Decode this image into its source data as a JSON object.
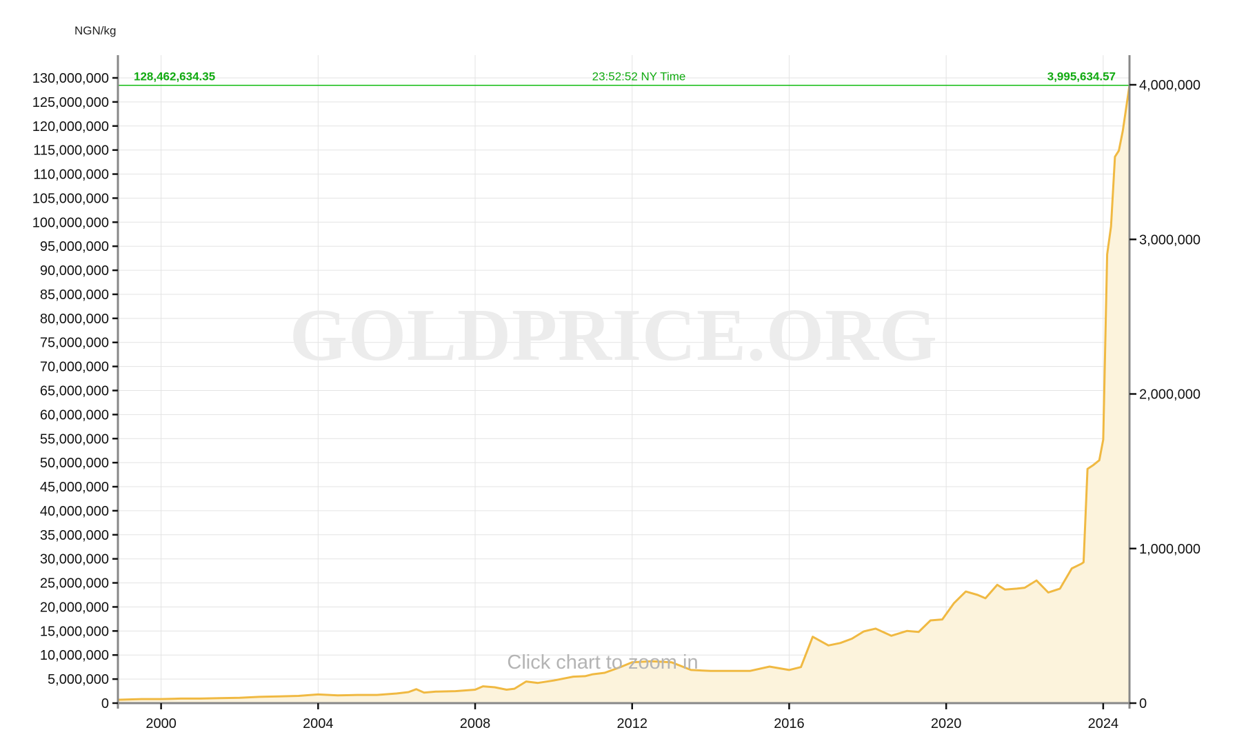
{
  "chart_data": {
    "type": "area",
    "unit_label": "NGN/kg",
    "watermark": "GOLDPRICE.ORG",
    "zoom_hint": "Click chart to zoom in",
    "reference_line": {
      "left_value_label": "128,462,634.35",
      "time_label": "23:52:52 NY Time",
      "right_value_label": "3,995,634.57",
      "value": 128462634.35,
      "color": "#11bb11"
    },
    "x_axis": {
      "min": 1998.9,
      "max": 2024.67,
      "ticks": [
        2000,
        2004,
        2008,
        2012,
        2016,
        2020,
        2024
      ],
      "tick_labels": [
        "2000",
        "2004",
        "2008",
        "2012",
        "2016",
        "2020",
        "2024"
      ]
    },
    "y_axis_left": {
      "min": 0,
      "max": 130000000,
      "ticks": [
        0,
        5000000,
        10000000,
        15000000,
        20000000,
        25000000,
        30000000,
        35000000,
        40000000,
        45000000,
        50000000,
        55000000,
        60000000,
        65000000,
        70000000,
        75000000,
        80000000,
        85000000,
        90000000,
        95000000,
        100000000,
        105000000,
        110000000,
        115000000,
        120000000,
        125000000,
        130000000
      ],
      "tick_labels": [
        "0",
        "5,000,000",
        "10,000,000",
        "15,000,000",
        "20,000,000",
        "25,000,000",
        "30,000,000",
        "35,000,000",
        "40,000,000",
        "45,000,000",
        "50,000,000",
        "55,000,000",
        "60,000,000",
        "65,000,000",
        "70,000,000",
        "75,000,000",
        "80,000,000",
        "85,000,000",
        "90,000,000",
        "95,000,000",
        "100,000,000",
        "105,000,000",
        "110,000,000",
        "115,000,000",
        "120,000,000",
        "125,000,000",
        "130,000,000"
      ]
    },
    "y_axis_right": {
      "min": 0,
      "max": 4000000,
      "ticks": [
        0,
        1000000,
        2000000,
        3000000,
        4000000
      ],
      "tick_labels": [
        "0",
        "1,000,000",
        "2,000,000",
        "3,000,000",
        "4,000,000"
      ]
    },
    "grid": true,
    "colors": {
      "line": "#f0b942",
      "fill": "#fcf3dc",
      "grid": "#e3e3e3",
      "axis": "#888888"
    },
    "series": [
      {
        "x": [
          1998.9,
          1999.5,
          2000.0,
          2000.5,
          2001.0,
          2001.5,
          2002.0,
          2002.5,
          2003.0,
          2003.5,
          2004.0,
          2004.5,
          2005.0,
          2005.5,
          2006.0,
          2006.3,
          2006.5,
          2006.7,
          2007.0,
          2007.5,
          2008.0,
          2008.2,
          2008.5,
          2008.8,
          2009.0,
          2009.3,
          2009.6,
          2010.0,
          2010.5,
          2010.8,
          2011.0,
          2011.3,
          2011.7,
          2012.0,
          2012.5,
          2013.0,
          2013.5,
          2014.0,
          2014.5,
          2015.0,
          2015.5,
          2016.0,
          2016.3,
          2016.6,
          2017.0,
          2017.3,
          2017.6,
          2017.9,
          2018.2,
          2018.6,
          2019.0,
          2019.3,
          2019.6,
          2019.9,
          2020.2,
          2020.5,
          2020.8,
          2021.0,
          2021.3,
          2021.5,
          2021.8,
          2022.0,
          2022.3,
          2022.6,
          2022.9,
          2023.2,
          2023.45,
          2023.5,
          2023.6,
          2023.75,
          2023.9,
          2024.0,
          2024.1,
          2024.2,
          2024.3,
          2024.4,
          2024.5,
          2024.67
        ],
        "y": [
          700000,
          850000,
          850000,
          950000,
          950000,
          1050000,
          1100000,
          1300000,
          1400000,
          1500000,
          1800000,
          1600000,
          1700000,
          1700000,
          2000000,
          2300000,
          2900000,
          2200000,
          2400000,
          2500000,
          2800000,
          3500000,
          3300000,
          2800000,
          3000000,
          4500000,
          4200000,
          4700000,
          5500000,
          5600000,
          6000000,
          6300000,
          7500000,
          8500000,
          8700000,
          8500000,
          6900000,
          6700000,
          6700000,
          6700000,
          7600000,
          6900000,
          7500000,
          13800000,
          12000000,
          12500000,
          13400000,
          14900000,
          15500000,
          14000000,
          15000000,
          14800000,
          17200000,
          17400000,
          20800000,
          23200000,
          22500000,
          21800000,
          24600000,
          23600000,
          23800000,
          24000000,
          25500000,
          23000000,
          23800000,
          28000000,
          29000000,
          29300000,
          48700000,
          49500000,
          50500000,
          54800000,
          93300000,
          99100000,
          113600000,
          114900000,
          119000000,
          128462634
        ]
      }
    ]
  }
}
